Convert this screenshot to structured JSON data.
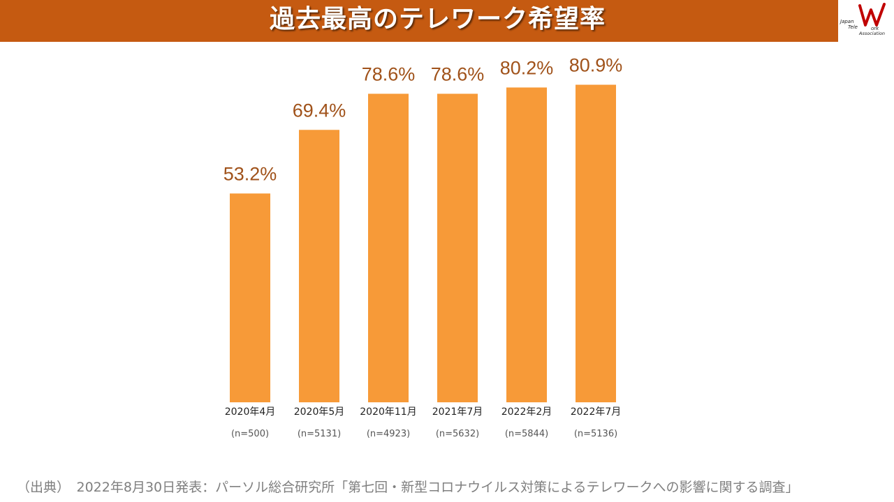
{
  "header": {
    "title": "過去最高のテレワーク希望率",
    "logo_text": [
      "Japan",
      "Tele",
      "ork",
      "Association"
    ]
  },
  "colors": {
    "header_bg": "#c55a11",
    "bar": "#f79a38",
    "value_label": "#a0521a",
    "tick_label": "#222222",
    "n_label": "#555555",
    "logo_red": "#c00000"
  },
  "chart_data": {
    "type": "bar",
    "categories": [
      "2020年4月",
      "2020年5月",
      "2020年11月",
      "2021年7月",
      "2022年2月",
      "2022年7月"
    ],
    "sample_sizes": [
      "(n=500)",
      "(n=5131)",
      "(n=4923)",
      "(n=5632)",
      "(n=5844)",
      "(n=5136)"
    ],
    "values": [
      53.2,
      69.4,
      78.6,
      78.6,
      80.2,
      80.9
    ],
    "value_labels": [
      "53.2%",
      "69.4%",
      "78.6%",
      "78.6%",
      "80.2%",
      "80.9%"
    ],
    "title": "",
    "xlabel": "",
    "ylabel": "",
    "ylim": [
      0,
      100
    ],
    "grid": false,
    "legend": "none"
  },
  "footer": {
    "source": "（出典）　2022年8月30日発表：パーソル総合研究所「第七回・新型コロナウイルス対策によるテレワークへの影響に関する調査」"
  }
}
